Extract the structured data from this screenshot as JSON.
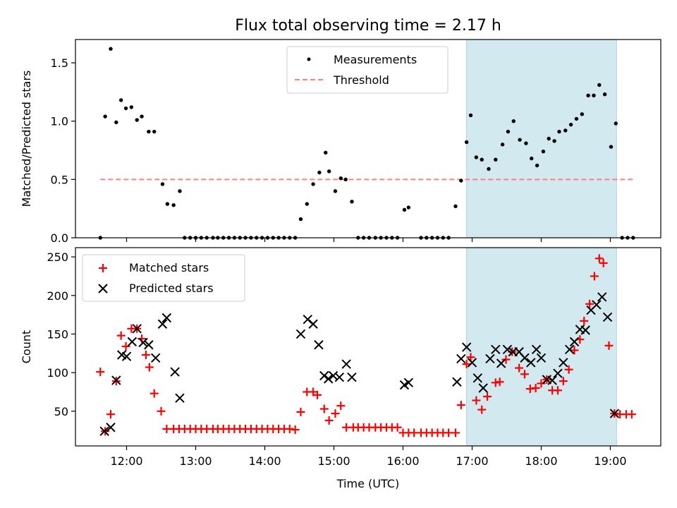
{
  "chart_data": {
    "title": "Flux total observing time = 2.17 h",
    "xlabel": "Time (UTC)",
    "x_ticks": [
      "12:00",
      "13:00",
      "14:00",
      "15:00",
      "16:00",
      "17:00",
      "18:00",
      "19:00"
    ],
    "x_tick_hours": [
      12,
      13,
      14,
      15,
      16,
      17,
      18,
      19
    ],
    "xlim": [
      11.26,
      19.73
    ],
    "shaded_span": [
      16.92,
      19.09
    ],
    "shaded_color": "#d3e9f0",
    "panels": [
      {
        "type": "scatter",
        "ylabel": "Matched/Predicted stars",
        "ylim": [
          0,
          1.7
        ],
        "y_ticks": [
          0.0,
          0.5,
          1.0,
          1.5
        ],
        "y_tick_labels": [
          "0.0",
          "0.5",
          "1.0",
          "1.5"
        ],
        "legend_position": "top-center",
        "series": [
          {
            "name": "Measurements",
            "marker": "dot",
            "color": "#000000",
            "x": [
              11.62,
              11.69,
              11.77,
              11.85,
              11.92,
              11.99,
              12.07,
              12.15,
              12.22,
              12.32,
              12.4,
              12.52,
              12.59,
              12.68,
              12.77,
              12.84,
              12.92,
              13.0,
              13.08,
              13.16,
              13.25,
              13.32,
              13.4,
              13.48,
              13.56,
              13.64,
              13.72,
              13.8,
              13.88,
              13.96,
              14.04,
              14.12,
              14.2,
              14.28,
              14.36,
              14.44,
              14.52,
              14.61,
              14.7,
              14.79,
              14.88,
              14.93,
              15.02,
              15.1,
              15.17,
              15.26,
              15.35,
              15.43,
              15.51,
              15.6,
              15.68,
              15.76,
              15.84,
              15.92,
              16.02,
              16.08,
              16.26,
              16.34,
              16.42,
              16.5,
              16.58,
              16.66,
              16.76,
              16.84,
              16.92,
              16.98,
              17.06,
              17.14,
              17.24,
              17.34,
              17.44,
              17.52,
              17.6,
              17.69,
              17.78,
              17.86,
              17.94,
              18.03,
              18.11,
              18.19,
              18.26,
              18.35,
              18.43,
              18.51,
              18.59,
              18.68,
              18.76,
              18.84,
              18.92,
              19.01,
              19.08,
              19.17,
              19.25,
              19.33
            ],
            "y": [
              0.0,
              1.04,
              1.62,
              0.99,
              1.18,
              1.11,
              1.12,
              1.01,
              1.04,
              0.91,
              0.91,
              0.46,
              0.29,
              0.28,
              0.4,
              0.0,
              0.0,
              0.0,
              0.0,
              0.0,
              0.0,
              0.0,
              0.0,
              0.0,
              0.0,
              0.0,
              0.0,
              0.0,
              0.0,
              0.0,
              0.0,
              0.0,
              0.0,
              0.0,
              0.0,
              0.0,
              0.16,
              0.29,
              0.46,
              0.56,
              0.73,
              0.57,
              0.4,
              0.51,
              0.5,
              0.31,
              0.0,
              0.0,
              0.0,
              0.0,
              0.0,
              0.0,
              0.0,
              0.0,
              0.24,
              0.26,
              0.0,
              0.0,
              0.0,
              0.0,
              0.0,
              0.0,
              0.27,
              0.49,
              0.82,
              1.05,
              0.69,
              0.67,
              0.59,
              0.67,
              0.8,
              0.91,
              1.0,
              0.84,
              0.81,
              0.68,
              0.62,
              0.74,
              0.85,
              0.83,
              0.91,
              0.92,
              0.97,
              1.02,
              1.06,
              1.22,
              1.22,
              1.31,
              1.23,
              0.78,
              0.98,
              0.0,
              0.0,
              0.0
            ]
          },
          {
            "name": "Threshold",
            "marker": "dashed-line",
            "color": "#ff7f7f",
            "x": [
              11.62,
              19.33
            ],
            "y": [
              0.5,
              0.5
            ]
          }
        ]
      },
      {
        "type": "scatter",
        "ylabel": "Count",
        "ylim": [
          5,
          262
        ],
        "y_ticks": [
          50,
          100,
          150,
          200,
          250
        ],
        "y_tick_labels": [
          "50",
          "100",
          "150",
          "200",
          "250"
        ],
        "legend_position": "top-left",
        "series": [
          {
            "name": "Matched stars",
            "marker": "plus",
            "color": "#ff0000",
            "x": [
              11.62,
              11.69,
              11.77,
              11.85,
              11.92,
              11.99,
              12.07,
              12.15,
              12.22,
              12.28,
              12.33,
              12.4,
              12.5,
              12.58,
              12.68,
              12.76,
              12.84,
              12.92,
              13.0,
              13.08,
              13.16,
              13.25,
              13.32,
              13.4,
              13.48,
              13.56,
              13.64,
              13.72,
              13.8,
              13.88,
              13.96,
              14.04,
              14.12,
              14.2,
              14.28,
              14.36,
              14.44,
              14.52,
              14.61,
              14.7,
              14.76,
              14.86,
              14.93,
              15.02,
              15.1,
              15.18,
              15.28,
              15.35,
              15.43,
              15.51,
              15.6,
              15.68,
              15.76,
              15.84,
              15.92,
              16.0,
              16.08,
              16.16,
              16.26,
              16.34,
              16.42,
              16.5,
              16.58,
              16.66,
              16.76,
              16.84,
              16.92,
              16.98,
              17.06,
              17.14,
              17.22,
              17.34,
              17.4,
              17.49,
              17.58,
              17.68,
              17.76,
              17.84,
              17.92,
              18.0,
              18.08,
              18.16,
              18.24,
              18.32,
              18.4,
              18.48,
              18.56,
              18.62,
              18.7,
              18.77,
              18.84,
              18.9,
              18.98,
              19.06,
              19.14,
              19.23,
              19.31
            ],
            "y": [
              101,
              24,
              46,
              89,
              148,
              134,
              157,
              157,
              144,
              123,
              107,
              73,
              50,
              27,
              27,
              27,
              27,
              27,
              27,
              27,
              27,
              27,
              27,
              27,
              27,
              27,
              27,
              27,
              27,
              27,
              27,
              27,
              27,
              27,
              27,
              27,
              26,
              49,
              75,
              75,
              71,
              53,
              38,
              47,
              57,
              29,
              29,
              29,
              29,
              29,
              29,
              29,
              29,
              29,
              29,
              22,
              22,
              22,
              22,
              22,
              22,
              22,
              22,
              22,
              22,
              58,
              111,
              120,
              64,
              52,
              69,
              87,
              88,
              117,
              127,
              106,
              98,
              79,
              80,
              86,
              91,
              77,
              77,
              89,
              104,
              129,
              143,
              167,
              189,
              225,
              248,
              242,
              135,
              47,
              46,
              46,
              46
            ]
          },
          {
            "name": "Predicted stars",
            "marker": "x",
            "color": "#000000",
            "x": [
              11.68,
              11.77,
              11.85,
              11.93,
              12.0,
              12.08,
              12.15,
              12.24,
              12.32,
              12.42,
              12.52,
              12.58,
              12.7,
              12.77,
              14.52,
              14.62,
              14.7,
              14.78,
              14.86,
              14.92,
              14.99,
              15.08,
              15.18,
              15.26,
              16.02,
              16.08,
              16.78,
              16.84,
              16.92,
              17.0,
              17.08,
              17.16,
              17.26,
              17.34,
              17.42,
              17.51,
              17.59,
              17.68,
              17.76,
              17.85,
              17.93,
              18.0,
              18.08,
              18.16,
              18.24,
              18.32,
              18.41,
              18.48,
              18.56,
              18.64,
              18.72,
              18.8,
              18.88,
              18.96,
              19.06
            ],
            "y": [
              24,
              29,
              90,
              123,
              121,
              140,
              157,
              139,
              136,
              119,
              163,
              171,
              101,
              67,
              150,
              169,
              163,
              136,
              96,
              92,
              96,
              94,
              111,
              94,
              84,
              87,
              88,
              118,
              133,
              113,
              93,
              80,
              118,
              130,
              112,
              130,
              127,
              127,
              119,
              113,
              130,
              119,
              91,
              90,
              99,
              113,
              130,
              140,
              156,
              155,
              181,
              188,
              198,
              172,
              47
            ]
          }
        ]
      }
    ]
  }
}
